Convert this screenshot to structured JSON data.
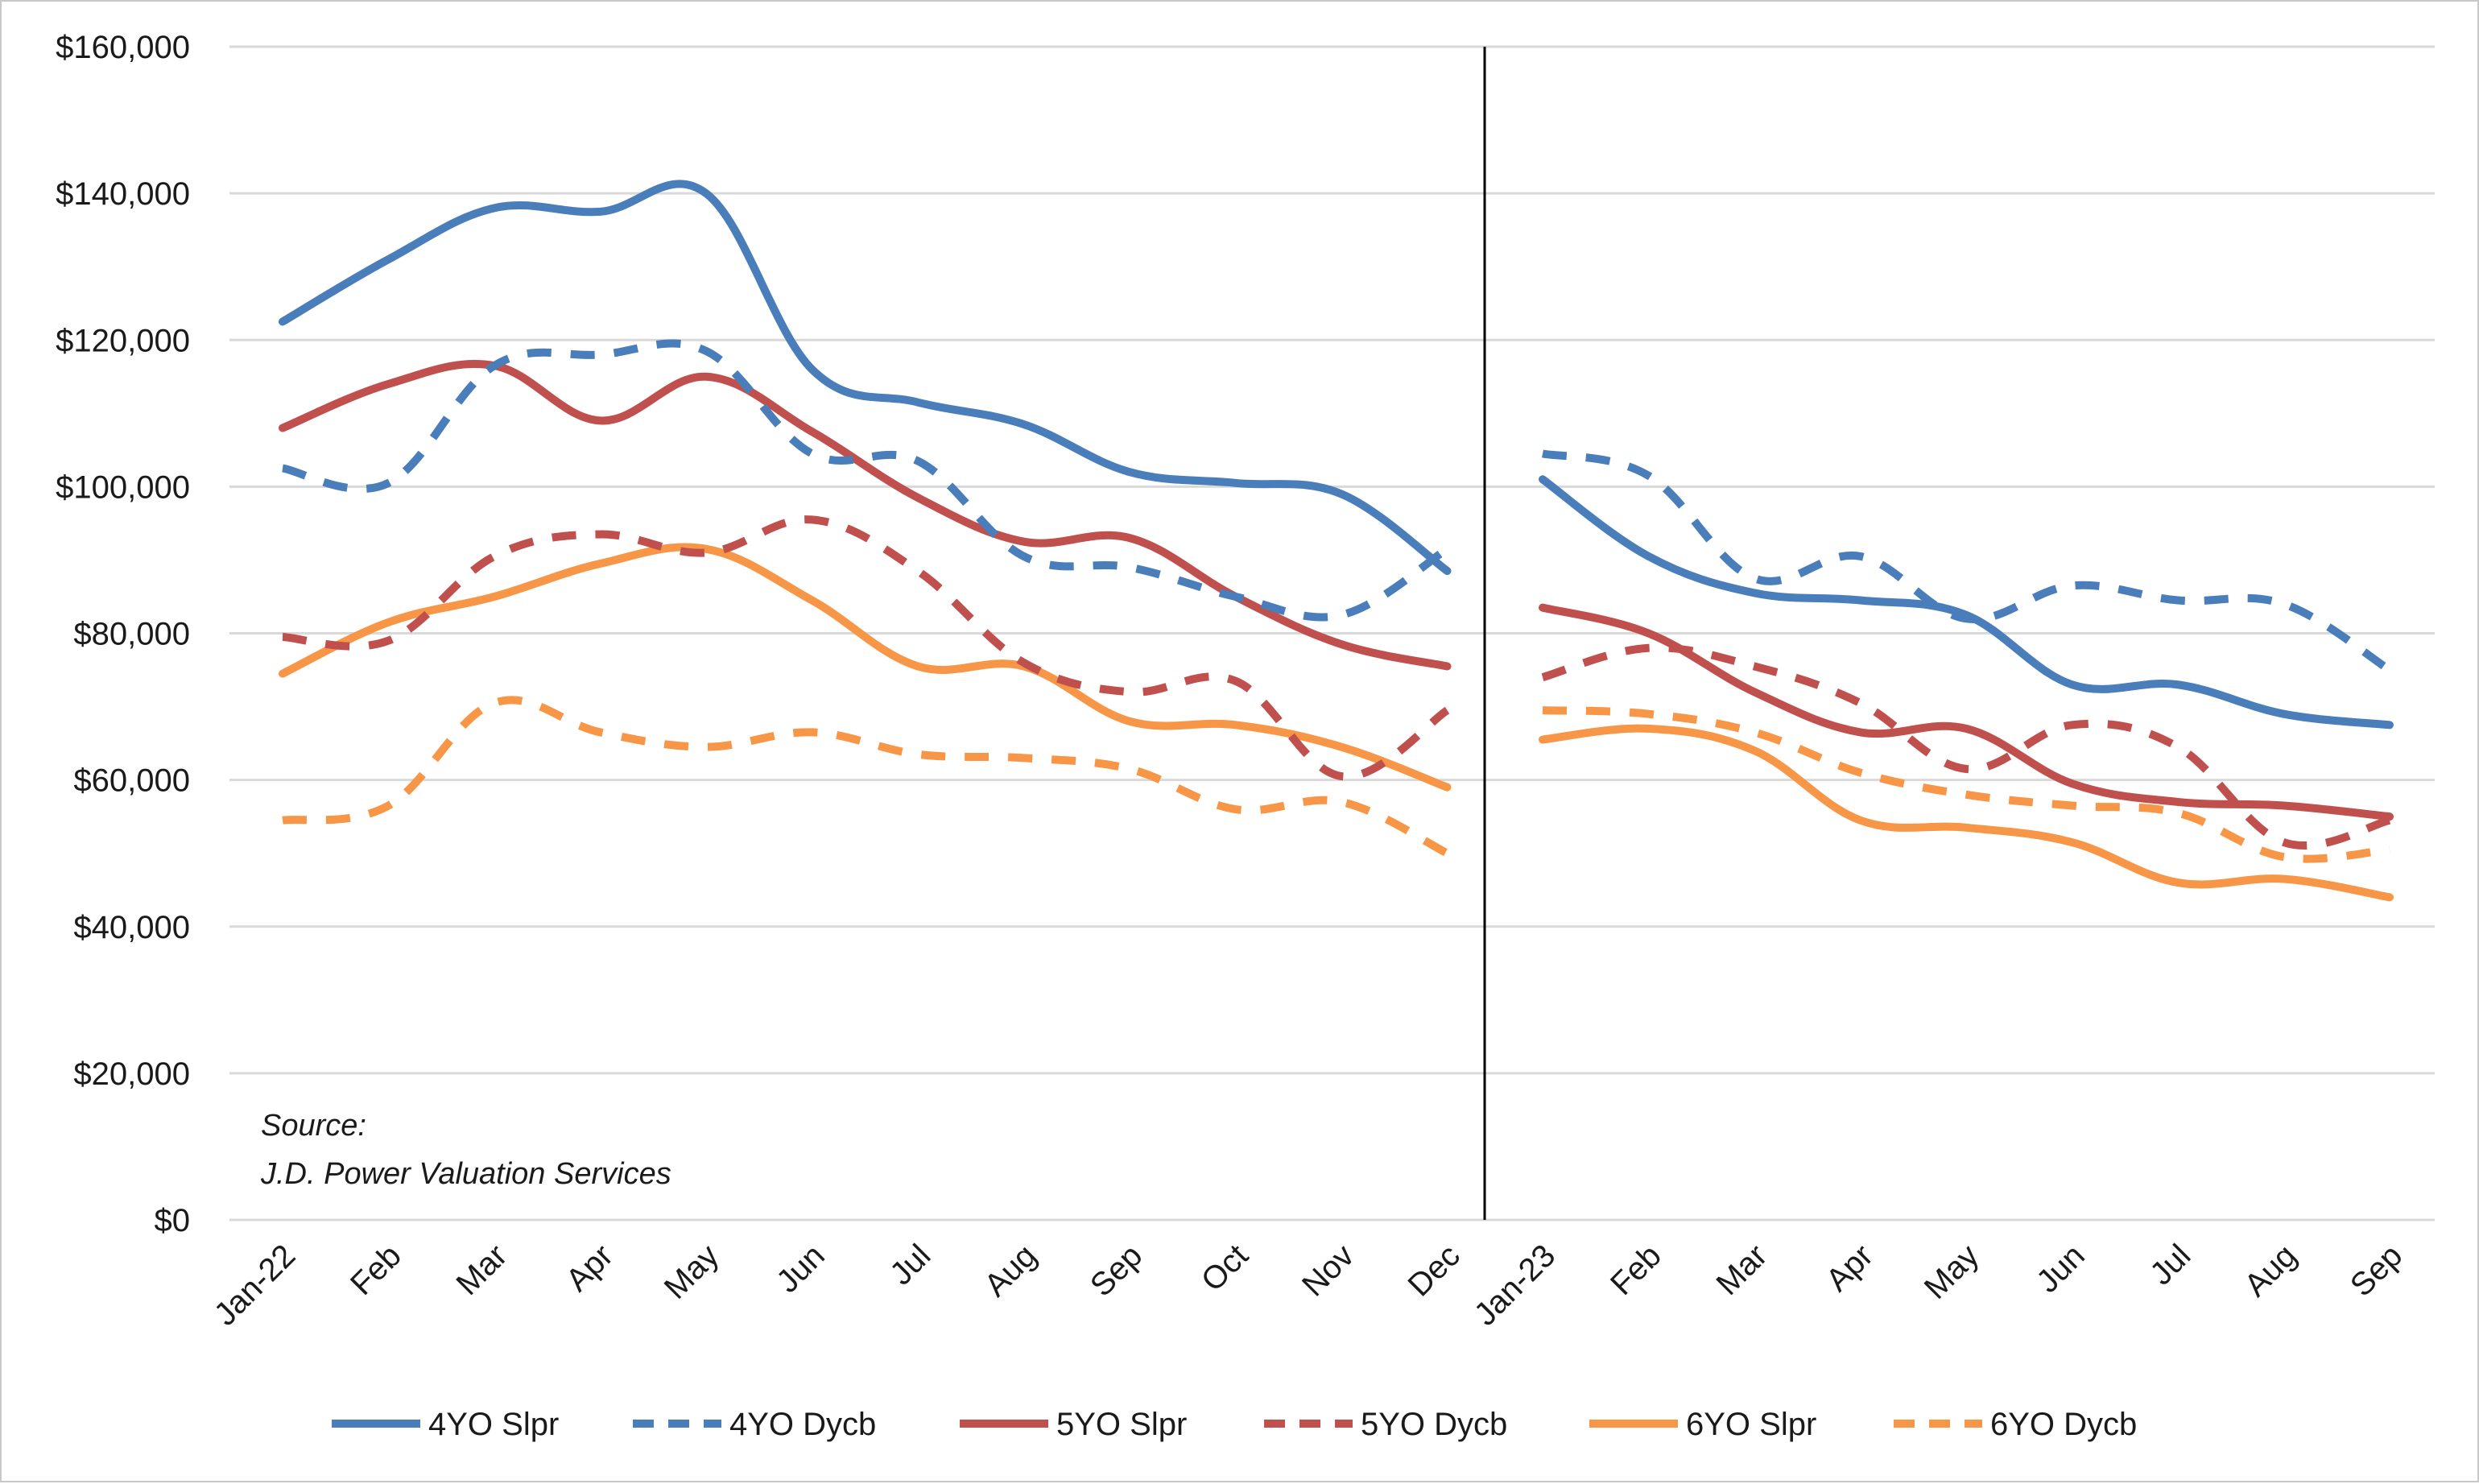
{
  "chart_data": {
    "type": "line",
    "title": "",
    "xlabel": "",
    "ylabel": "",
    "ylim": [
      0,
      160000
    ],
    "y_ticks": [
      "$0",
      "$20,000",
      "$40,000",
      "$60,000",
      "$80,000",
      "$100,000",
      "$120,000",
      "$140,000",
      "$160,000"
    ],
    "y_tick_values": [
      0,
      20000,
      40000,
      60000,
      80000,
      100000,
      120000,
      140000,
      160000
    ],
    "grid": "horizontal",
    "legend_position": "bottom",
    "divider_between": [
      "Dec",
      "Jan-23"
    ],
    "annotation": {
      "line1": "Source:",
      "line2": "J.D. Power Valuation Services"
    },
    "segments": [
      {
        "categories": [
          "Jan-22",
          "Feb",
          "Mar",
          "Apr",
          "May",
          "Jun",
          "Jul",
          "Aug",
          "Sep",
          "Oct",
          "Nov",
          "Dec"
        ],
        "series": [
          {
            "name": "4YO Slpr",
            "values": [
              122500,
              131000,
              138000,
              137500,
              140000,
              116000,
              111500,
              108500,
              102000,
              100500,
              99000,
              88500
            ]
          },
          {
            "name": "4YO Dycb",
            "values": [
              102500,
              100500,
              116500,
              118000,
              118500,
              104500,
              103500,
              90500,
              89000,
              85000,
              82500,
              91500
            ]
          },
          {
            "name": "5YO Slpr",
            "values": [
              108000,
              114000,
              116500,
              109000,
              115000,
              107500,
              98500,
              92500,
              93000,
              85000,
              78500,
              75500
            ]
          },
          {
            "name": "5YO Dycb",
            "values": [
              79500,
              79000,
              90500,
              93500,
              91000,
              95500,
              88500,
              76000,
              72000,
              73500,
              60500,
              69500
            ]
          },
          {
            "name": "6YO Slpr",
            "values": [
              74500,
              81500,
              85000,
              89500,
              91500,
              84500,
              75500,
              75500,
              68000,
              67500,
              64500,
              59000
            ]
          },
          {
            "name": "6YO Dycb",
            "values": [
              54500,
              56500,
              70500,
              66500,
              64500,
              66500,
              63500,
              63000,
              61500,
              56000,
              57000,
              50000
            ]
          }
        ]
      },
      {
        "categories": [
          "Jan-23",
          "Feb",
          "Mar",
          "Apr",
          "May",
          "Jun",
          "Jul",
          "Aug",
          "Sep"
        ],
        "series": [
          {
            "name": "4YO Slpr",
            "values": [
              101000,
              90500,
              85500,
              84500,
              82500,
              73000,
              73000,
              69000,
              67500
            ]
          },
          {
            "name": "4YO Dycb",
            "values": [
              104500,
              101500,
              87500,
              90500,
              82000,
              86500,
              84500,
              84000,
              75000
            ]
          },
          {
            "name": "5YO Slpr",
            "values": [
              83500,
              80000,
              72000,
              66500,
              67000,
              59500,
              57000,
              56500,
              55000
            ]
          },
          {
            "name": "5YO Dycb",
            "values": [
              74000,
              78000,
              75500,
              70500,
              61500,
              67500,
              64500,
              51500,
              54500
            ]
          },
          {
            "name": "6YO Slpr",
            "values": [
              65500,
              67000,
              64000,
              54500,
              53500,
              51500,
              46000,
              46500,
              44000
            ]
          },
          {
            "name": "6YO Dycb",
            "values": [
              69500,
              69000,
              66500,
              61000,
              58000,
              56500,
              55500,
              49500,
              50500
            ]
          }
        ]
      }
    ],
    "series_styles": [
      {
        "name": "4YO Slpr",
        "color": "#4a7ebb",
        "dash": "solid"
      },
      {
        "name": "4YO Dycb",
        "color": "#4a7ebb",
        "dash": "dashed"
      },
      {
        "name": "5YO Slpr",
        "color": "#c0504d",
        "dash": "solid"
      },
      {
        "name": "5YO Dycb",
        "color": "#c0504d",
        "dash": "dashed"
      },
      {
        "name": "6YO Slpr",
        "color": "#f79646",
        "dash": "solid"
      },
      {
        "name": "6YO Dycb",
        "color": "#f79646",
        "dash": "dashed"
      }
    ]
  }
}
